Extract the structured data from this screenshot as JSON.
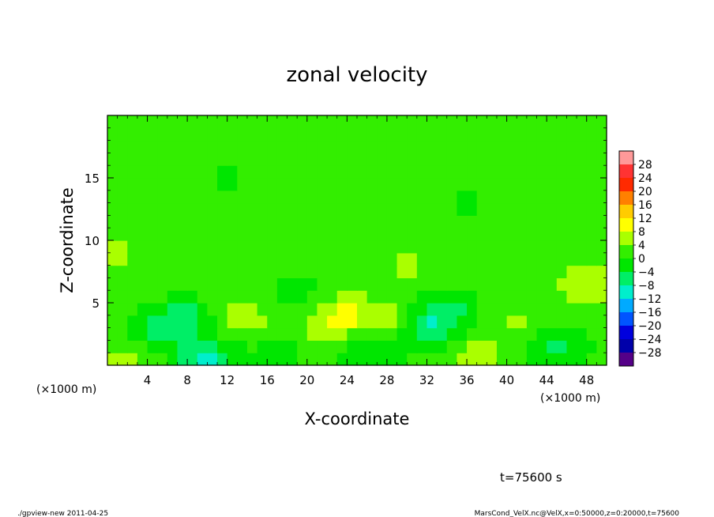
{
  "chart_data": {
    "type": "heatmap",
    "title": "zonal velocity",
    "xlabel": "X-coordinate",
    "ylabel": "Z-coordinate",
    "x_unit_left": "(×1000 m)",
    "x_unit_right": "(×1000 m)",
    "xlim": [
      0,
      50
    ],
    "ylim": [
      0,
      20
    ],
    "x_ticks": [
      4,
      8,
      12,
      16,
      20,
      24,
      28,
      32,
      36,
      40,
      44,
      48
    ],
    "x_tick_labels": [
      "4",
      "8",
      "12",
      "16",
      "20",
      "24",
      "28",
      "32",
      "36",
      "40",
      "44",
      "48"
    ],
    "y_ticks": [
      5,
      10,
      15
    ],
    "y_tick_labels": [
      "5",
      "10",
      "15"
    ],
    "colorbar": {
      "levels": [
        28,
        24,
        20,
        16,
        12,
        8,
        4,
        0,
        -4,
        -8,
        -12,
        -16,
        -20,
        -24,
        -28
      ],
      "labels": [
        "28",
        "24",
        "20",
        "16",
        "12",
        "8",
        "4",
        "0",
        "−4",
        "−8",
        "−12",
        "−16",
        "−20",
        "−24",
        "−28"
      ],
      "colors": [
        "#ff9999",
        "#ff3333",
        "#ff2a00",
        "#ff8000",
        "#ffcc00",
        "#ffff00",
        "#aaff00",
        "#33ee00",
        "#00e600",
        "#00ee66",
        "#00eecc",
        "#00aaff",
        "#0055ff",
        "#0000dd",
        "#0000aa",
        "#550088"
      ]
    },
    "field": {
      "x_cells": 50,
      "z_cells": 20,
      "background_value": 1.5,
      "features": [
        {
          "x": 8,
          "z": 3.8,
          "value": -8
        },
        {
          "x": 5,
          "z": 2.5,
          "value": -6
        },
        {
          "x": 12,
          "z": 4.5,
          "value": 4
        },
        {
          "x": 15,
          "z": 3,
          "value": 3
        },
        {
          "x": 10,
          "z": 0.5,
          "value": -10
        },
        {
          "x": 24,
          "z": 4.2,
          "value": 6
        },
        {
          "x": 28,
          "z": 3.4,
          "value": 5
        },
        {
          "x": 22,
          "z": 2.8,
          "value": 4
        },
        {
          "x": 26,
          "z": 1.2,
          "value": -6
        },
        {
          "x": 32,
          "z": 2.8,
          "value": -8
        },
        {
          "x": 34,
          "z": 4.5,
          "value": -7
        },
        {
          "x": 37,
          "z": 1,
          "value": 4
        },
        {
          "x": 41,
          "z": 3.5,
          "value": 3
        },
        {
          "x": 45,
          "z": 1.5,
          "value": -6
        },
        {
          "x": 48,
          "z": 6.5,
          "value": 5
        },
        {
          "x": 2,
          "z": 0.8,
          "value": 4
        },
        {
          "x": 17,
          "z": 1.2,
          "value": -4
        },
        {
          "x": 19,
          "z": 6,
          "value": -3
        },
        {
          "x": 30,
          "z": 8,
          "value": 3
        },
        {
          "x": 1,
          "z": 9,
          "value": 3
        },
        {
          "x": 36,
          "z": 13,
          "value": -2
        },
        {
          "x": 12,
          "z": 15,
          "value": -2
        },
        {
          "x": 44,
          "z": 17,
          "value": 2
        }
      ]
    }
  },
  "annotations": {
    "time": "t=75600 s",
    "footer_left": "./gpview-new   2011-04-25",
    "footer_right": "MarsCond_VelX.nc@VelX,x=0:50000,z=0:20000,t=75600"
  }
}
